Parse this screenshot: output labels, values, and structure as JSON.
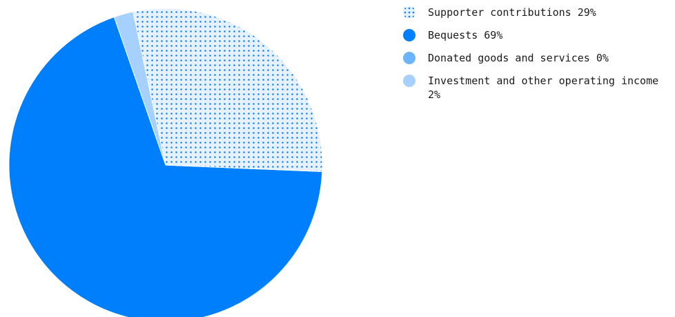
{
  "chart_data": {
    "type": "pie",
    "title": "",
    "start_angle_deg": -102,
    "slices": [
      {
        "label": "Supporter contributions",
        "value": 29,
        "display": "29%",
        "color": "#0a7ef5",
        "pattern": "dots"
      },
      {
        "label": "Bequests",
        "value": 69,
        "display": "69%",
        "color": "#007ffc",
        "pattern": "solid"
      },
      {
        "label": "Donated goods and services",
        "value": 0,
        "display": "0%",
        "color": "#6db4ff",
        "pattern": "solid"
      },
      {
        "label": "Investment and other operating income",
        "value": 2,
        "display": "2%",
        "color": "#a6d0fd",
        "pattern": "solid"
      }
    ],
    "draw_order": [
      1,
      2,
      3,
      0
    ],
    "legend_position": "right"
  },
  "legend": {
    "items": [
      {
        "text": "Supporter contributions 29%"
      },
      {
        "text": "Bequests 69%"
      },
      {
        "text": "Donated goods and services 0%"
      },
      {
        "text": "Investment and other operating income 2%"
      }
    ]
  }
}
